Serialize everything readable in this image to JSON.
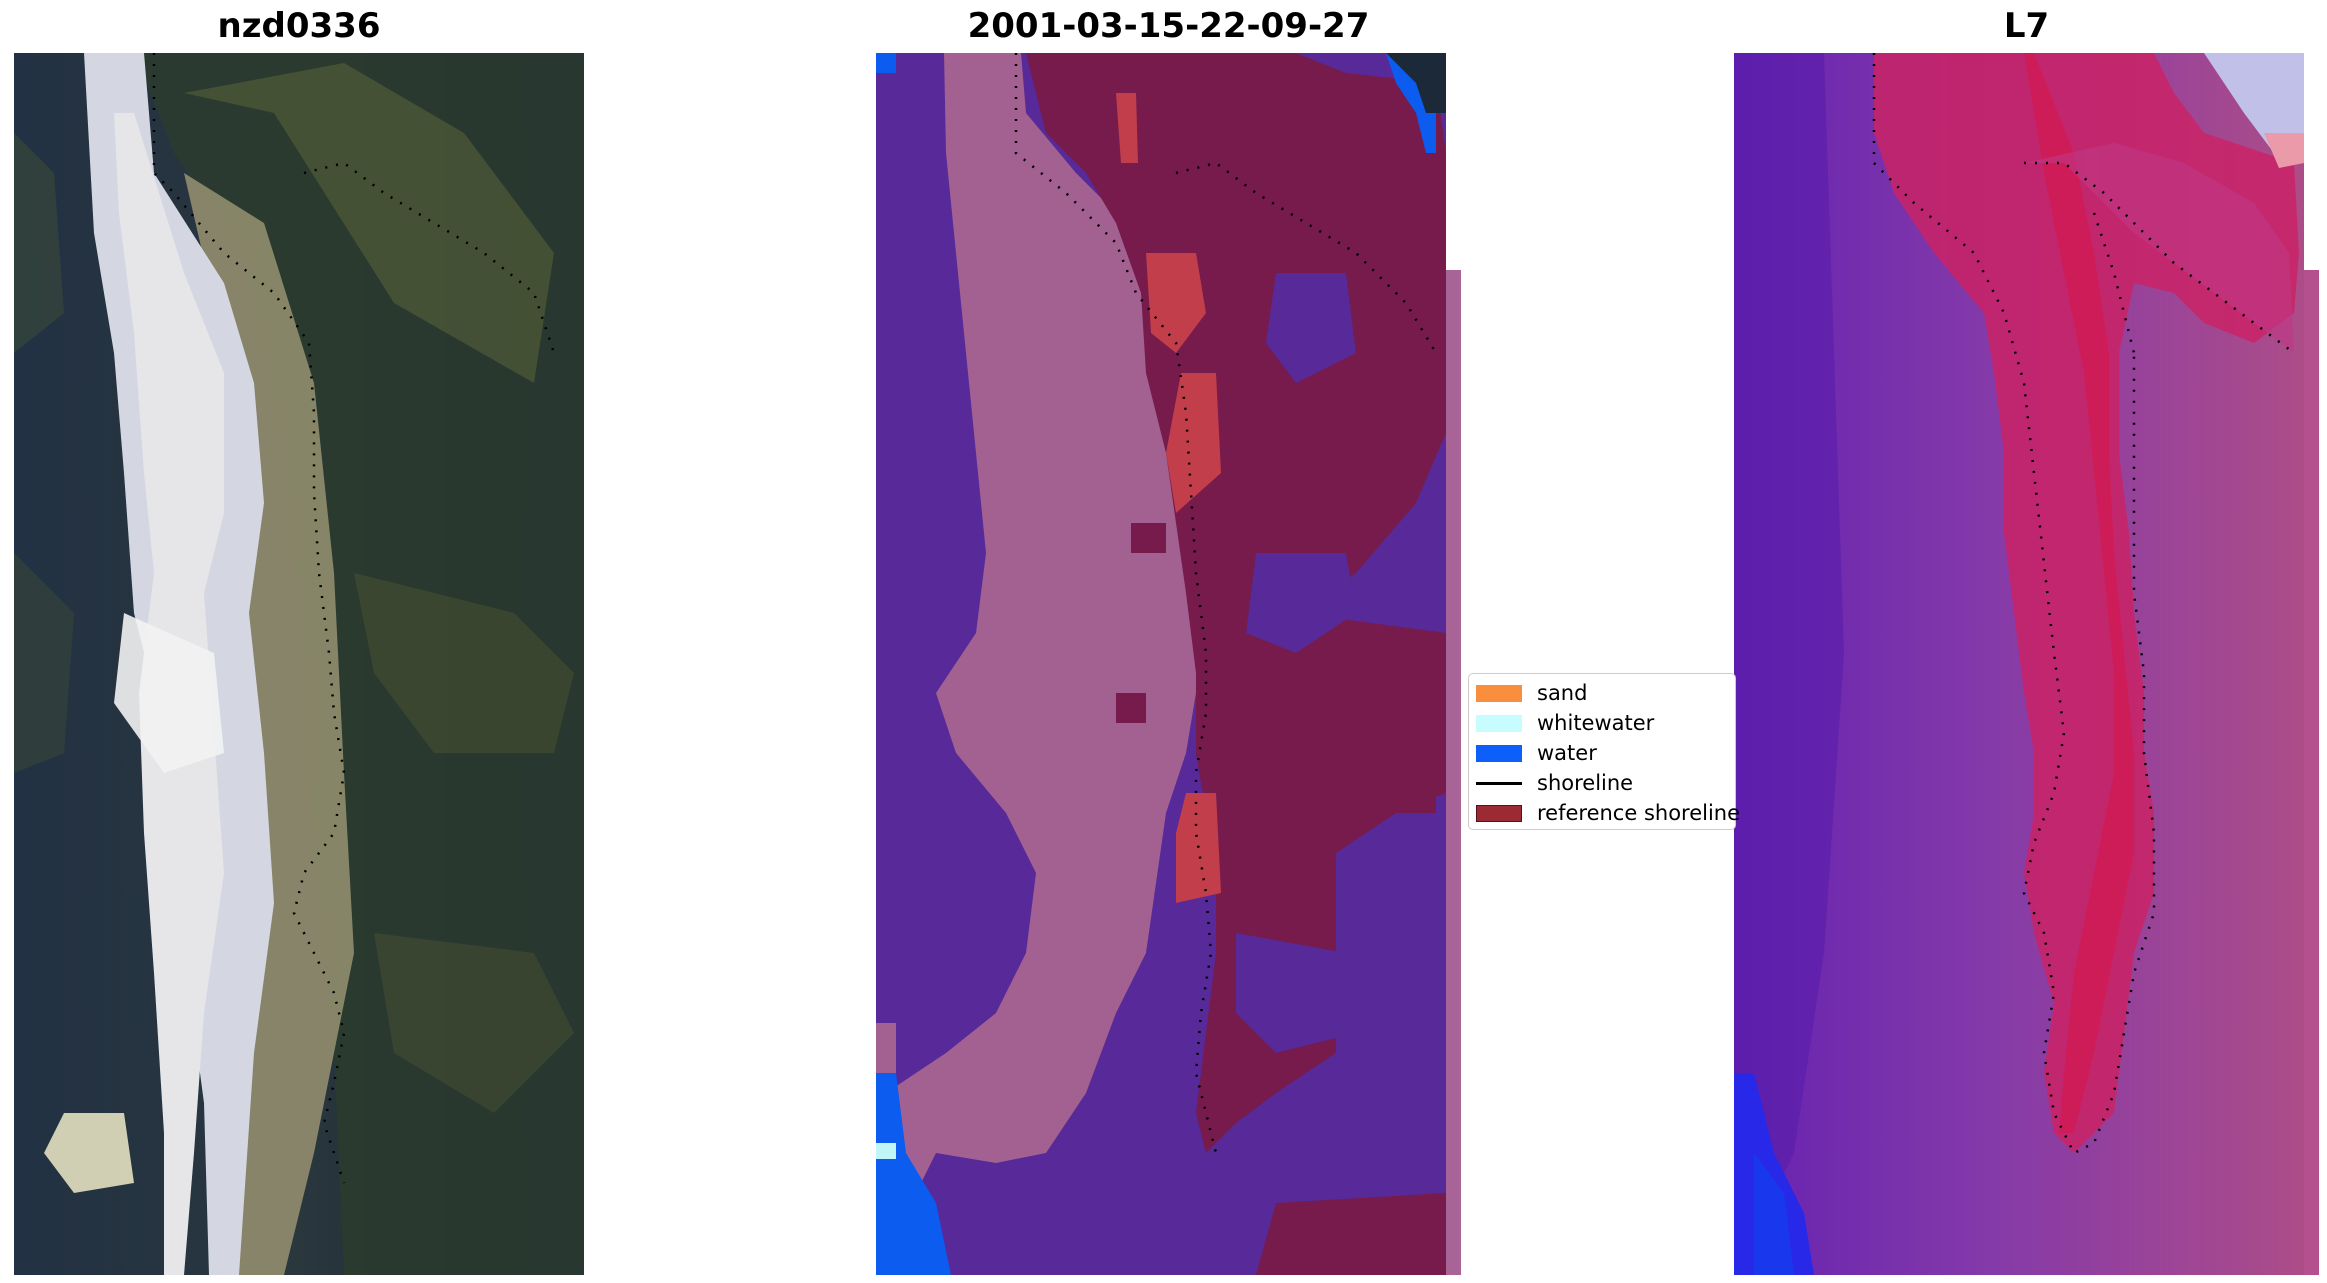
{
  "panels": [
    {
      "title": "nzd0336",
      "kind": "rgb-image"
    },
    {
      "title": "2001-03-15-22-09-27",
      "kind": "classified-image"
    },
    {
      "title": "L7",
      "kind": "index-image"
    }
  ],
  "legend": {
    "items": [
      {
        "label": "sand",
        "color": "#f98e3f",
        "kind": "patch"
      },
      {
        "label": "whitewater",
        "color": "#c7fdfe",
        "kind": "patch"
      },
      {
        "label": "water",
        "color": "#0c5ff8",
        "kind": "patch"
      },
      {
        "label": "shoreline",
        "color": "#000000",
        "kind": "line"
      },
      {
        "label": "reference shoreline",
        "color": "#9c2a35",
        "kind": "patch"
      }
    ]
  },
  "colors": {
    "class_background": "#5a2a9e",
    "class_sand_overlay": "#a86496",
    "class_reference": "#7a1c4e",
    "index_base": "#8a3cb0",
    "index_high": "#d2246a",
    "rgb_dark": "#1a2a3e",
    "rgb_bright": "#dfe3ee"
  }
}
